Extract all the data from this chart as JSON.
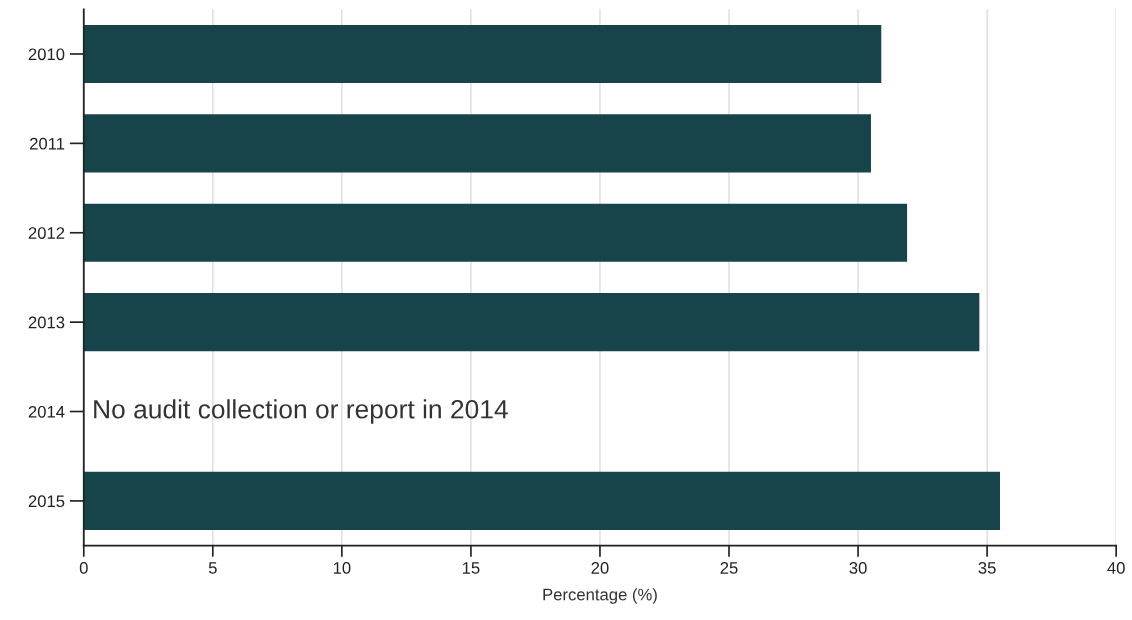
{
  "chart_data": {
    "type": "bar",
    "orientation": "horizontal",
    "categories": [
      "2010",
      "2011",
      "2012",
      "2013",
      "2014",
      "2015"
    ],
    "values": [
      30.9,
      30.5,
      31.9,
      34.7,
      null,
      35.5
    ],
    "color": "#17434a",
    "xlabel": "Percentage (%)",
    "xlim": [
      0,
      40
    ],
    "xticks": [
      0,
      5,
      10,
      15,
      20,
      25,
      30,
      35,
      40
    ],
    "grid": "x",
    "annotations": [
      "No audit collection or report in 2014"
    ]
  }
}
